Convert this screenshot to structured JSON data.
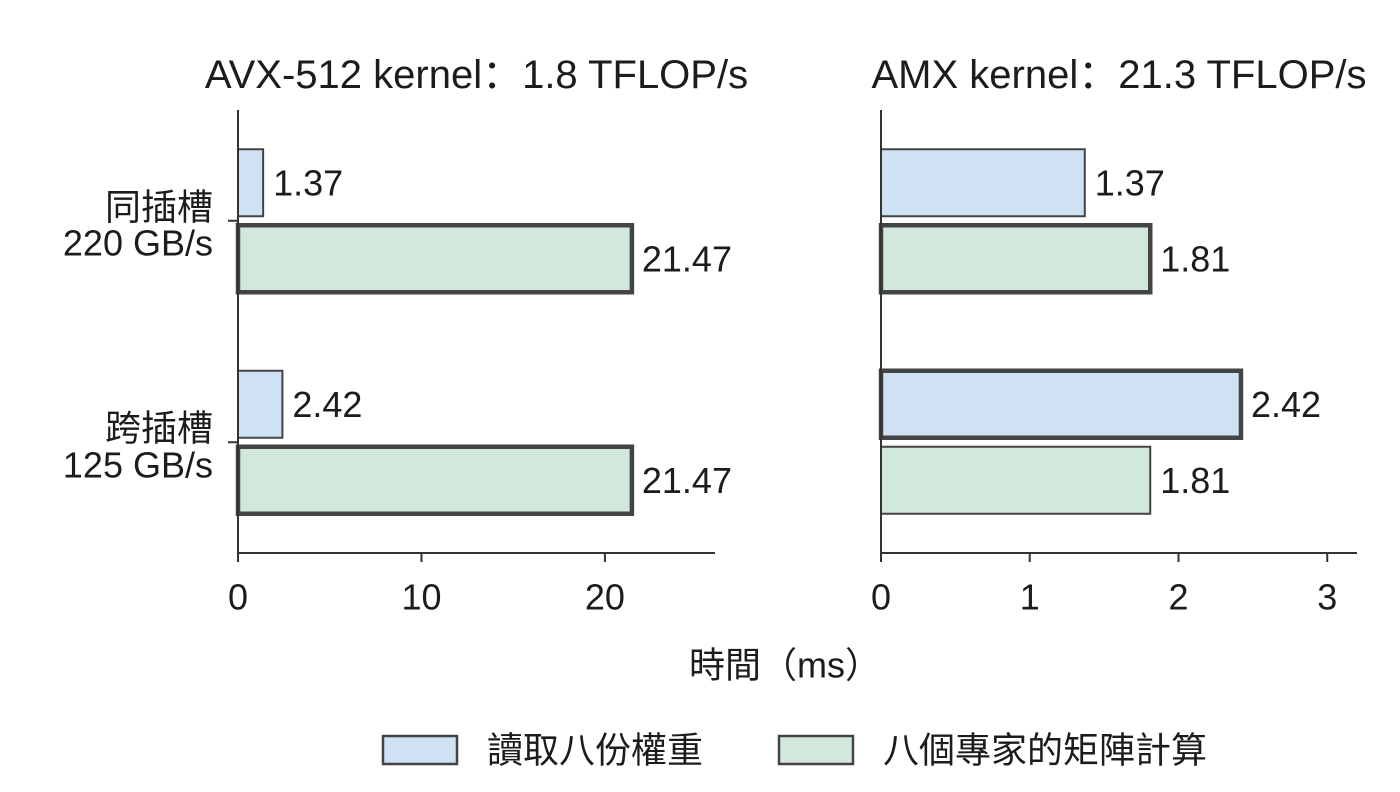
{
  "chart_data": {
    "type": "bar",
    "orientation": "horizontal",
    "xlabel": "時間（ms）",
    "categories": [
      [
        "同插槽",
        "220 GB/s"
      ],
      [
        "跨插槽",
        "125 GB/s"
      ]
    ],
    "legend": "bottom-center",
    "grid": false,
    "edge_color": "#444444",
    "series": [
      {
        "name": "讀取八份權重",
        "color": "#cfe2f3"
      },
      {
        "name": "八個專家的矩陣計算",
        "color": "#d3e8dc"
      }
    ],
    "panels": [
      {
        "title": "AVX-512 kernel：1.8 TFLOP/s",
        "xlim": [
          0,
          26
        ],
        "xticks": [
          0,
          10,
          20
        ],
        "series": [
          {
            "values": [
              1.37,
              2.42
            ],
            "bold_outline": [
              false,
              false
            ]
          },
          {
            "values": [
              21.47,
              21.47
            ],
            "bold_outline": [
              true,
              true
            ]
          }
        ]
      },
      {
        "title": "AMX kernel：21.3 TFLOP/s",
        "xlim": [
          0,
          3.2
        ],
        "xticks": [
          0,
          1,
          2,
          3
        ],
        "series": [
          {
            "values": [
              1.37,
              2.42
            ],
            "bold_outline": [
              false,
              true
            ]
          },
          {
            "values": [
              1.81,
              1.81
            ],
            "bold_outline": [
              true,
              false
            ]
          }
        ]
      }
    ]
  }
}
